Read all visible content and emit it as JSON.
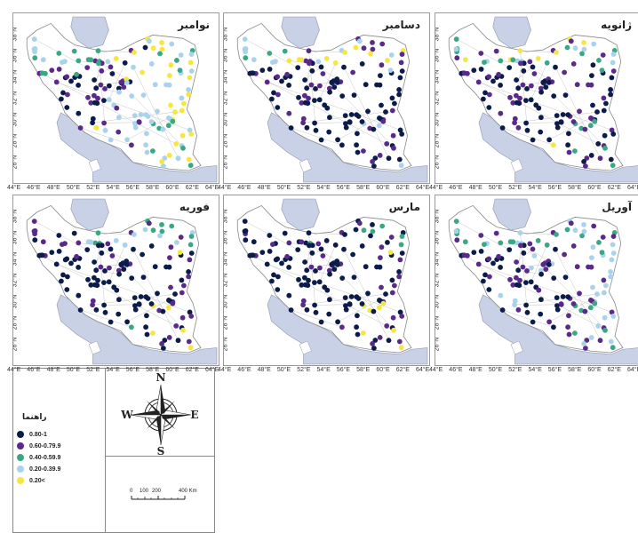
{
  "colors": {
    "water": "#c9d1e6",
    "land": "#ffffff",
    "border": "#b8b8b8",
    "class_80_1": "#0b1c4a",
    "class_60_79": "#5a2a8a",
    "class_40_59": "#3aa884",
    "class_20_39": "#a9d3ec",
    "class_lt20": "#f7e640"
  },
  "lon_ticks": [
    "44°E",
    "46°E",
    "48°E",
    "50°E",
    "52°E",
    "54°E",
    "56°E",
    "58°E",
    "60°E",
    "62°E",
    "64°E"
  ],
  "lat_ticks": [
    "38°N",
    "36°N",
    "34°N",
    "32°N",
    "30°N",
    "28°N",
    "26°N"
  ],
  "panels": [
    {
      "title": "نوامبر",
      "pattern": "nov"
    },
    {
      "title": "دسامبر",
      "pattern": "dec"
    },
    {
      "title": "ژانویه",
      "pattern": "jan"
    },
    {
      "title": "فوریه",
      "pattern": "feb"
    },
    {
      "title": "مارس",
      "pattern": "mar"
    },
    {
      "title": "آوریل",
      "pattern": "apr"
    }
  ],
  "legend": {
    "title": "راهنما",
    "items": [
      {
        "label": "0.80-1",
        "color_key": "class_80_1"
      },
      {
        "label": "0.60-0.79.9",
        "color_key": "class_60_79"
      },
      {
        "label": "0.40-0.59.9",
        "color_key": "class_40_59"
      },
      {
        "label": "0.20-0.39.9",
        "color_key": "class_20_39"
      },
      {
        "label": "0.20<",
        "color_key": "class_lt20"
      }
    ]
  },
  "north_arrow": {
    "n": "N",
    "s": "S",
    "e": "E",
    "w": "W"
  },
  "scale_bar": {
    "ticks": [
      "0",
      "100",
      "200",
      "400 Km"
    ]
  }
}
